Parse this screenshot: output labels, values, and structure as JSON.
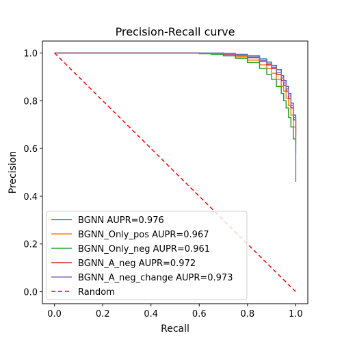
{
  "chart_data": {
    "type": "line",
    "title": "Precision-Recall curve",
    "xlabel": "Recall",
    "ylabel": "Precision",
    "xlim": [
      -0.05,
      1.05
    ],
    "ylim": [
      -0.05,
      1.05
    ],
    "xticks": [
      "0.0",
      "0.2",
      "0.4",
      "0.6",
      "0.8",
      "1.0"
    ],
    "yticks": [
      "0.0",
      "0.2",
      "0.4",
      "0.6",
      "0.8",
      "1.0"
    ],
    "grid": false,
    "legend_position": "lower-left",
    "series": [
      {
        "name": "BGNN AUPR=0.976",
        "color": "#1f77b4",
        "style": "solid",
        "x": [
          0.0,
          0.5,
          0.6,
          0.7,
          0.75,
          0.8,
          0.85,
          0.88,
          0.9,
          0.92,
          0.94,
          0.95,
          0.96,
          0.97,
          0.98,
          0.99,
          1.0
        ],
        "y": [
          1.0,
          1.0,
          1.0,
          0.998,
          0.994,
          0.988,
          0.975,
          0.962,
          0.948,
          0.93,
          0.905,
          0.885,
          0.86,
          0.83,
          0.79,
          0.74,
          0.67
        ]
      },
      {
        "name": "BGNN_Only_pos AUPR=0.967",
        "color": "#ff7f0e",
        "style": "solid",
        "x": [
          0.0,
          0.5,
          0.6,
          0.65,
          0.7,
          0.75,
          0.8,
          0.85,
          0.88,
          0.9,
          0.92,
          0.94,
          0.95,
          0.96,
          0.97,
          0.98,
          0.99,
          1.0
        ],
        "y": [
          1.0,
          1.0,
          0.998,
          0.996,
          0.99,
          0.985,
          0.97,
          0.95,
          0.935,
          0.915,
          0.89,
          0.86,
          0.84,
          0.81,
          0.78,
          0.74,
          0.69,
          0.62
        ]
      },
      {
        "name": "BGNN_Only_neg AUPR=0.961",
        "color": "#2ca02c",
        "style": "solid",
        "x": [
          0.0,
          0.5,
          0.6,
          0.65,
          0.7,
          0.75,
          0.8,
          0.85,
          0.88,
          0.9,
          0.92,
          0.94,
          0.95,
          0.96,
          0.97,
          0.98,
          0.99,
          1.0
        ],
        "y": [
          1.0,
          1.0,
          0.997,
          0.994,
          0.988,
          0.978,
          0.96,
          0.935,
          0.91,
          0.89,
          0.86,
          0.83,
          0.8,
          0.77,
          0.73,
          0.69,
          0.64,
          0.58
        ]
      },
      {
        "name": "BGNN_A_neg AUPR=0.972",
        "color": "#d62728",
        "style": "solid",
        "x": [
          0.0,
          0.5,
          0.6,
          0.7,
          0.75,
          0.8,
          0.85,
          0.88,
          0.9,
          0.92,
          0.94,
          0.95,
          0.96,
          0.97,
          0.98,
          0.99,
          1.0
        ],
        "y": [
          1.0,
          1.0,
          0.999,
          0.995,
          0.99,
          0.98,
          0.965,
          0.95,
          0.935,
          0.91,
          0.885,
          0.865,
          0.84,
          0.81,
          0.77,
          0.72,
          0.65
        ]
      },
      {
        "name": "BGNN_A_neg_change AUPR=0.973",
        "color": "#9467bd",
        "style": "solid",
        "x": [
          0.0,
          0.5,
          0.6,
          0.7,
          0.75,
          0.8,
          0.85,
          0.88,
          0.9,
          0.92,
          0.94,
          0.95,
          0.96,
          0.97,
          0.98,
          0.99,
          1.0
        ],
        "y": [
          1.0,
          1.0,
          0.999,
          0.996,
          0.992,
          0.983,
          0.968,
          0.955,
          0.94,
          0.918,
          0.895,
          0.875,
          0.85,
          0.82,
          0.78,
          0.73,
          0.46
        ]
      },
      {
        "name": "Random",
        "color": "#ff0000",
        "style": "dashed",
        "x": [
          0.0,
          1.0
        ],
        "y": [
          1.0,
          0.0
        ]
      }
    ]
  }
}
